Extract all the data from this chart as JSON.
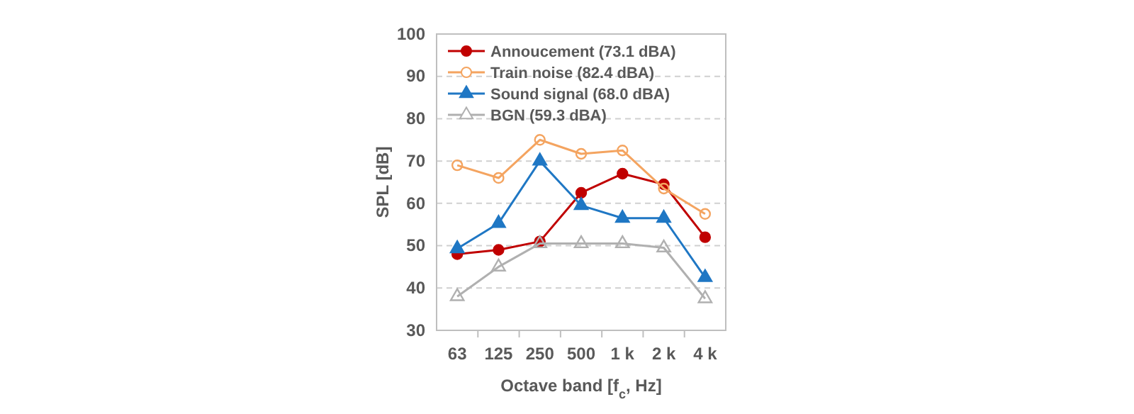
{
  "chart_data": {
    "type": "line",
    "xlabel": "Octave band [f$_{c}$, Hz]",
    "ylabel": "SPL [dB]",
    "categories": [
      "63",
      "125",
      "250",
      "500",
      "1 k",
      "2 k",
      "4 k"
    ],
    "series": [
      {
        "name": "Annoucement (73.1 dBA)",
        "color": "#c00000",
        "marker": "circle",
        "values": [
          48,
          49,
          51,
          62.5,
          67,
          64.5,
          52
        ]
      },
      {
        "name": "Train noise (82.4 dBA)",
        "color": "#f4a460",
        "marker": "circle",
        "values": [
          69,
          66,
          75,
          71.7,
          72.5,
          63.5,
          57.5
        ]
      },
      {
        "name": "Sound signal (68.0 dBA)",
        "color": "#1f77c4",
        "marker": "triangle",
        "values": [
          49.3,
          55.3,
          70,
          59.5,
          56.5,
          56.5,
          42.5
        ]
      },
      {
        "name": "BGN (59.3 dBA)",
        "color": "#b0b0b0",
        "marker": "triangle",
        "values": [
          38,
          45,
          50.5,
          50.5,
          50.5,
          49.5,
          37.5
        ]
      }
    ],
    "ylim": [
      30,
      100
    ],
    "yticks": [
      30,
      40,
      50,
      60,
      70,
      80,
      90,
      100
    ],
    "grid": "y",
    "legend": "top left"
  }
}
